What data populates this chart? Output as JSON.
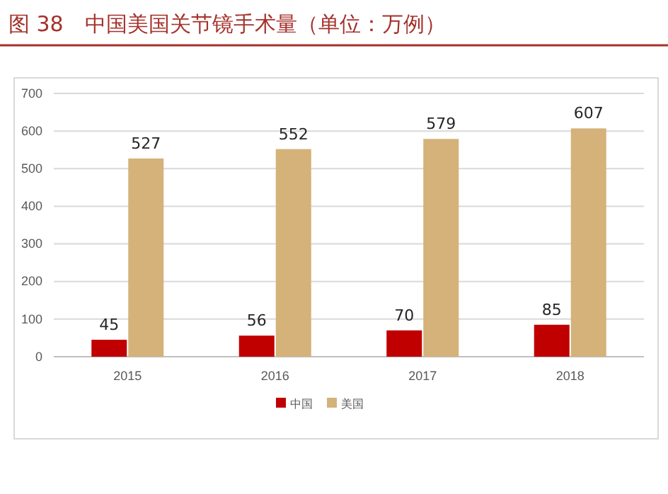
{
  "chart_data": {
    "type": "bar",
    "title": "图 38　中国美国关节镜手术量（单位：万例）",
    "categories": [
      "2015",
      "2016",
      "2017",
      "2018"
    ],
    "series": [
      {
        "name": "中国",
        "color": "#c00000",
        "values": [
          45,
          56,
          70,
          85
        ]
      },
      {
        "name": "美国",
        "color": "#d4b27a",
        "values": [
          527,
          552,
          579,
          607
        ]
      }
    ],
    "ylim": [
      0,
      700
    ],
    "yticks": [
      0,
      100,
      200,
      300,
      400,
      500,
      600,
      700
    ],
    "grid": "y",
    "data_labels": true,
    "legend": "bottom"
  }
}
